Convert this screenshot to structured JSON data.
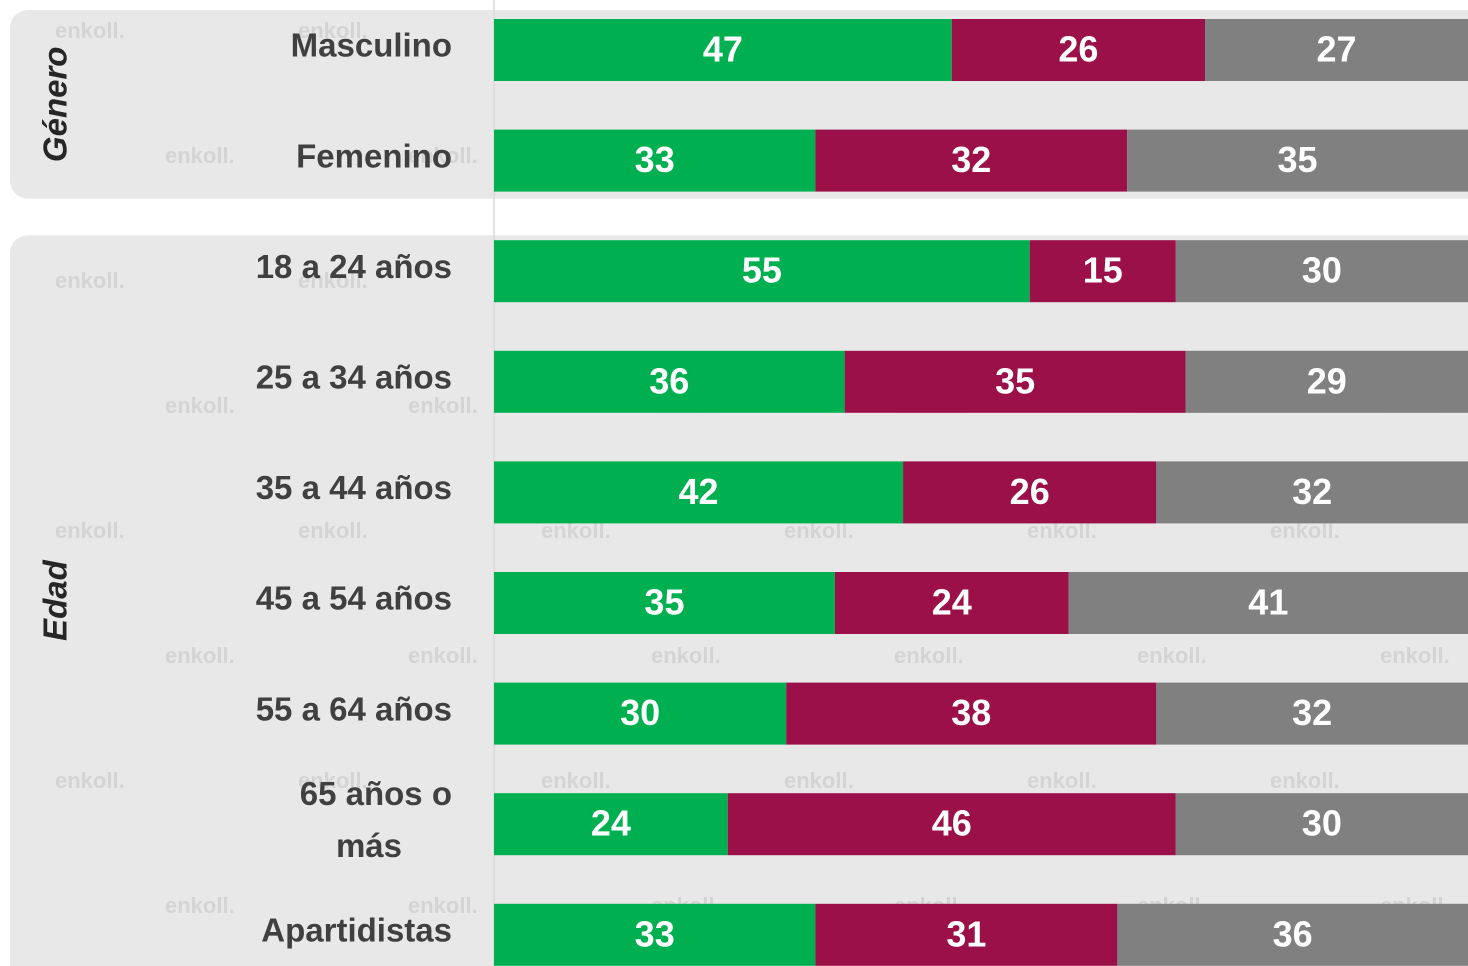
{
  "chart_data": {
    "type": "stacked_bar_horizontal",
    "groups": [
      {
        "label": "Género",
        "categories": [
          "Masculino",
          "Femenino"
        ]
      },
      {
        "label": "Edad",
        "categories": [
          "18 a 24 años",
          "25 a 34 años",
          "35 a 44 años",
          "45 a 54 años",
          "55 a 64 años",
          "65 años o más",
          "Apartidistas"
        ]
      }
    ],
    "series": [
      {
        "color": "#00b050",
        "values": [
          47,
          33,
          55,
          36,
          42,
          35,
          30,
          24,
          33
        ]
      },
      {
        "color": "#9b1048",
        "values": [
          26,
          32,
          15,
          35,
          26,
          24,
          38,
          46,
          31
        ]
      },
      {
        "color": "#808080",
        "values": [
          27,
          35,
          30,
          29,
          32,
          41,
          32,
          30,
          36
        ]
      }
    ],
    "xlim": [
      0,
      100
    ],
    "watermark": "enkoll."
  }
}
